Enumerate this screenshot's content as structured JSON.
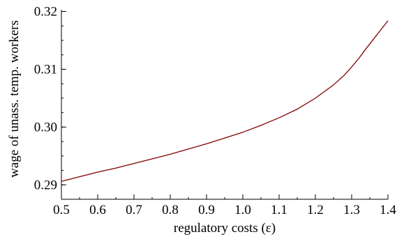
{
  "chart_data": {
    "type": "line",
    "title": "",
    "xlabel": "regulatory costs (ε)",
    "ylabel": "wage of unass. temp. workers",
    "xlim": [
      0.5,
      1.4
    ],
    "ylim": [
      0.2875,
      0.3203
    ],
    "grid": false,
    "legend": "none",
    "x_ticks": [
      0.5,
      0.6,
      0.7,
      0.8,
      0.9,
      1.0,
      1.1,
      1.2,
      1.3,
      1.4
    ],
    "x_tick_labels": [
      "0.5",
      "0.6",
      "0.7",
      "0.8",
      "0.9",
      "1.0",
      "1.1",
      "1.2",
      "1.3",
      "1.4"
    ],
    "x_minor_step": 0.05,
    "y_ticks": [
      0.29,
      0.3,
      0.31,
      0.32
    ],
    "y_tick_labels": [
      "0.29",
      "0.30",
      "0.31",
      "0.32"
    ],
    "y_minor_step": 0.0025,
    "series": [
      {
        "color": "#800000",
        "x": [
          0.5,
          0.55,
          0.6,
          0.65,
          0.7,
          0.75,
          0.8,
          0.85,
          0.9,
          0.95,
          1.0,
          1.05,
          1.1,
          1.15,
          1.2,
          1.25,
          1.28,
          1.3,
          1.32,
          1.34,
          1.36,
          1.38,
          1.39,
          1.4
        ],
        "y": [
          0.2906,
          0.2914,
          0.2922,
          0.2929,
          0.2937,
          0.2945,
          0.2953,
          0.2962,
          0.2971,
          0.2981,
          0.2991,
          0.3003,
          0.3016,
          0.3031,
          0.305,
          0.3073,
          0.309,
          0.3104,
          0.3119,
          0.3136,
          0.3152,
          0.3168,
          0.3176,
          0.3184
        ]
      }
    ]
  }
}
